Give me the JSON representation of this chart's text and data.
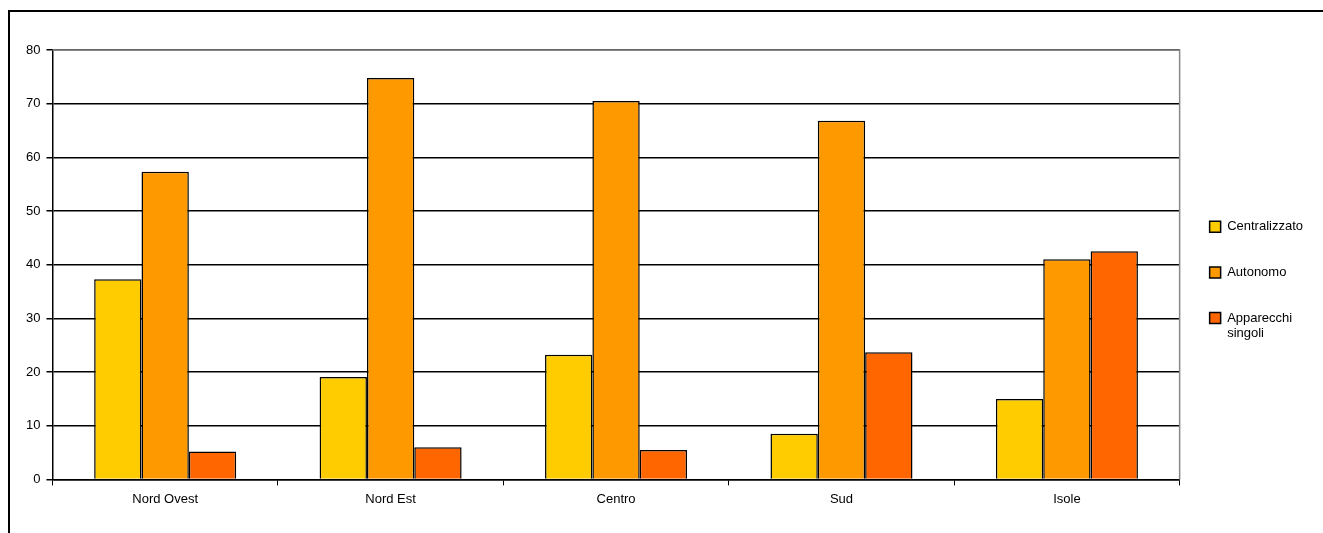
{
  "chart_data": {
    "type": "bar",
    "categories": [
      "Nord Ovest",
      "Nord Est",
      "Centro",
      "Sud",
      "Isole"
    ],
    "series": [
      {
        "name": "Centralizzato",
        "color": "#ffcc00",
        "values": [
          37.3,
          19.1,
          23.2,
          8.5,
          15.0
        ]
      },
      {
        "name": "Autonomo",
        "color": "#ff9900",
        "values": [
          57.3,
          74.8,
          70.5,
          66.8,
          41.0
        ]
      },
      {
        "name": "Apparecchi singoli",
        "color": "#ff6600",
        "values": [
          5.2,
          6.0,
          5.5,
          23.7,
          42.5
        ]
      }
    ],
    "ylim": [
      0,
      80
    ],
    "yticks": [
      0,
      10,
      20,
      30,
      40,
      50,
      60,
      70,
      80
    ],
    "grid": "y",
    "legend": "right"
  }
}
